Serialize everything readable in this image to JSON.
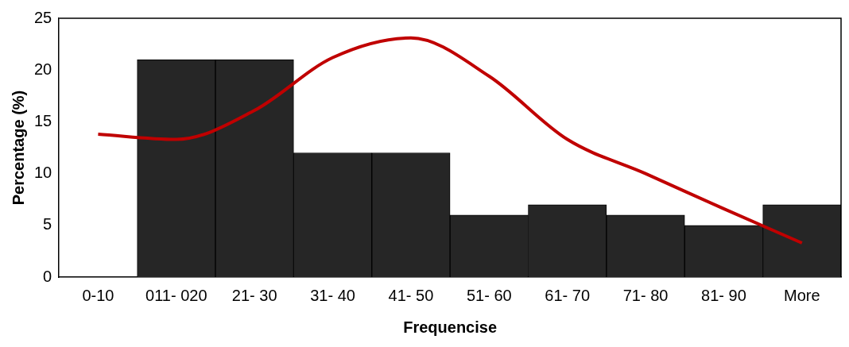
{
  "chart_data": {
    "type": "bar",
    "xlabel": "Frequencise",
    "ylabel": "Percentage (%)",
    "categories": [
      "0-10",
      "011- 020",
      "21- 30",
      "31- 40",
      "41- 50",
      "51- 60",
      "61- 70",
      "71- 80",
      "81- 90",
      "More"
    ],
    "series": [
      {
        "color": "#262626",
        "values": [
          0,
          21,
          21,
          12,
          12,
          6,
          7,
          6,
          5,
          7
        ]
      },
      {
        "type": "line",
        "color": "#c00000",
        "marker": "none",
        "values": [
          13.8,
          13.3,
          16.1,
          21.2,
          23.1,
          19.4,
          13.3,
          10.0,
          6.6,
          3.3
        ]
      }
    ],
    "ylim": [
      0,
      25
    ],
    "yticks": [
      0,
      5,
      10,
      15,
      20,
      25
    ],
    "grid": false,
    "legend": false
  }
}
